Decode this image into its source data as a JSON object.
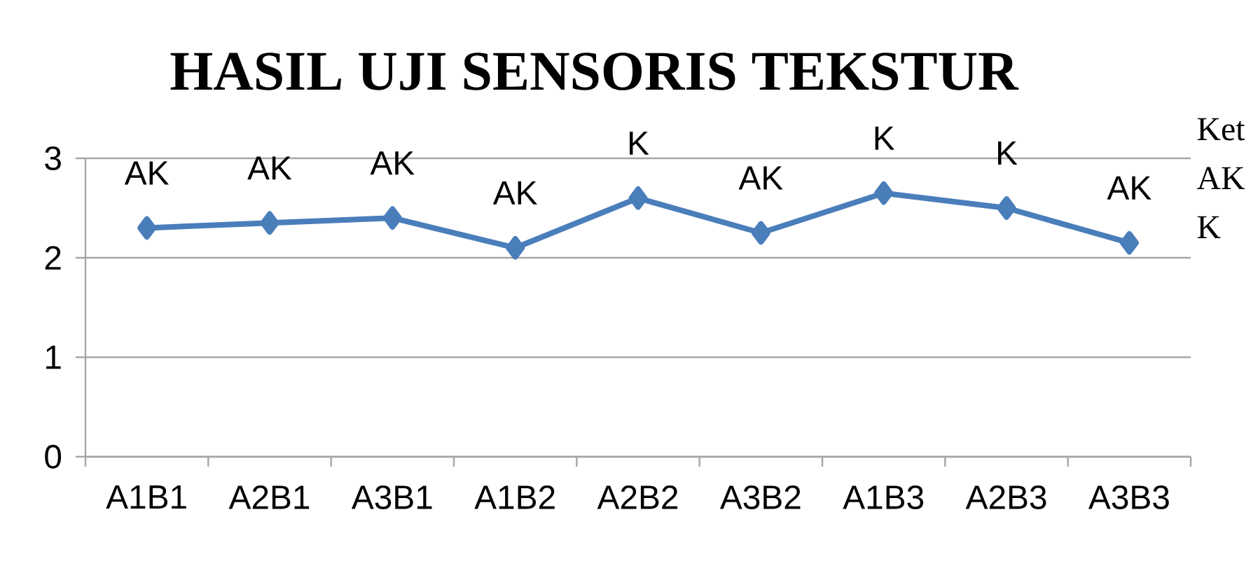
{
  "chart_data": {
    "type": "line",
    "title": "HASIL UJI SENSORIS TEKSTUR",
    "categories": [
      "A1B1",
      "A2B1",
      "A3B1",
      "A1B2",
      "A2B2",
      "A3B2",
      "A1B3",
      "A2B3",
      "A3B3"
    ],
    "values": [
      2.3,
      2.35,
      2.4,
      2.1,
      2.6,
      2.25,
      2.65,
      2.5,
      2.15
    ],
    "value_labels": [
      "AK",
      "AK",
      "AK",
      "AK",
      "K",
      "AK",
      "K",
      "K",
      "AK"
    ],
    "color": "#4a7ebb",
    "marker": "diamond",
    "line_style": "solid",
    "ylim": [
      0,
      3
    ],
    "yticks": [
      0,
      1,
      2,
      3
    ],
    "grid": "y",
    "annotations": [
      "Ket",
      "AK",
      "K"
    ]
  }
}
